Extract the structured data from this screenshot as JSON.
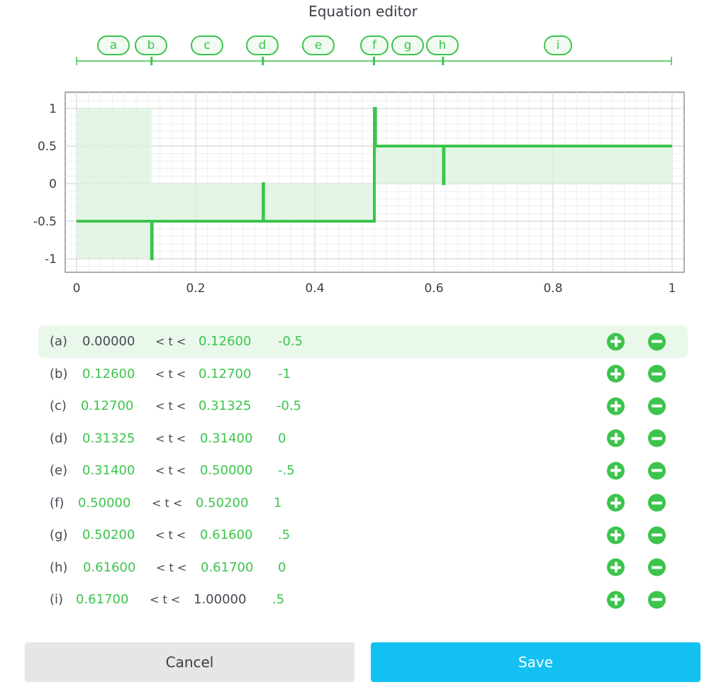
{
  "title": "Equation editor",
  "colors": {
    "accent": "#3cc44c",
    "fill": "#d9f3dc",
    "save": "#12c1f2",
    "cancel": "#e6e6e6"
  },
  "segments": [
    {
      "label": "a",
      "start": "0.00000",
      "end": "0.12600",
      "value": "-0.5",
      "start_plain": true,
      "end_plain": false,
      "active": true
    },
    {
      "label": "b",
      "start": "0.12600",
      "end": "0.12700",
      "value": "-1",
      "start_plain": false,
      "end_plain": false,
      "active": false
    },
    {
      "label": "c",
      "start": "0.12700",
      "end": "0.31325",
      "value": "-0.5",
      "start_plain": false,
      "end_plain": false,
      "active": false
    },
    {
      "label": "d",
      "start": "0.31325",
      "end": "0.31400",
      "value": "0",
      "start_plain": false,
      "end_plain": false,
      "active": false
    },
    {
      "label": "e",
      "start": "0.31400",
      "end": "0.50000",
      "value": "-.5",
      "start_plain": false,
      "end_plain": false,
      "active": false
    },
    {
      "label": "f",
      "start": "0.50000",
      "end": "0.50200",
      "value": "1",
      "start_plain": false,
      "end_plain": false,
      "active": false
    },
    {
      "label": "g",
      "start": "0.50200",
      "end": "0.61600",
      "value": ".5",
      "start_plain": false,
      "end_plain": false,
      "active": false
    },
    {
      "label": "h",
      "start": "0.61600",
      "end": "0.61700",
      "value": "0",
      "start_plain": false,
      "end_plain": false,
      "active": false
    },
    {
      "label": "i",
      "start": "0.61700",
      "end": "1.00000",
      "value": ".5",
      "start_plain": false,
      "end_plain": true,
      "active": false
    }
  ],
  "operator": "< t <",
  "chart_data": {
    "type": "line",
    "step": true,
    "xlim": [
      0,
      1
    ],
    "ylim": [
      -1.2,
      1.2
    ],
    "x_ticks": [
      "0",
      "0.2",
      "0.4",
      "0.6",
      "0.8",
      "1"
    ],
    "y_ticks": [
      "1",
      "0.5",
      "0",
      "-0.5",
      "-1"
    ],
    "grid": true,
    "series": [
      {
        "points": [
          [
            0,
            -0.5
          ],
          [
            0.126,
            -0.5
          ],
          [
            0.126,
            -1
          ],
          [
            0.127,
            -1
          ],
          [
            0.127,
            -0.5
          ],
          [
            0.31325,
            -0.5
          ],
          [
            0.31325,
            0
          ],
          [
            0.314,
            0
          ],
          [
            0.314,
            -0.5
          ],
          [
            0.5,
            -0.5
          ],
          [
            0.5,
            1
          ],
          [
            0.502,
            1
          ],
          [
            0.502,
            0.5
          ],
          [
            0.616,
            0.5
          ],
          [
            0.616,
            0
          ],
          [
            0.617,
            0
          ],
          [
            0.617,
            0.5
          ],
          [
            1,
            0.5
          ]
        ]
      }
    ],
    "shaded": [
      {
        "x": [
          0,
          0.126
        ],
        "y": [
          0,
          1
        ]
      },
      {
        "x": [
          0,
          0.126
        ],
        "y": [
          -1,
          0
        ]
      },
      {
        "x": [
          0.126,
          0.5
        ],
        "y": [
          -0.5,
          0
        ]
      },
      {
        "x": [
          0.502,
          1
        ],
        "y": [
          0,
          0.5
        ]
      }
    ]
  },
  "buttons": {
    "cancel": "Cancel",
    "save": "Save"
  }
}
